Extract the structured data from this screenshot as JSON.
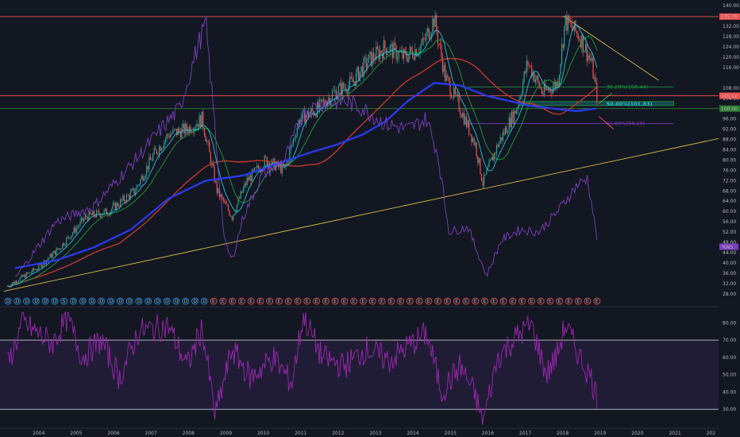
{
  "chart_data": [
    {
      "type": "candlestick",
      "panel": "price",
      "ylim": [
        27,
        141
      ],
      "y_ticks": [
        "140.00",
        "132.00",
        "128.00",
        "124.00",
        "120.00",
        "116.00",
        "108.00",
        "104.00",
        "100.00",
        "96.00",
        "92.00",
        "88.00",
        "84.00",
        "80.00",
        "76.00",
        "72.00",
        "68.00",
        "64.00",
        "60.00",
        "56.00",
        "52.00",
        "48.00",
        "44.00",
        "40.00",
        "36.00",
        "32.00",
        "28.00"
      ],
      "x_ticks": [
        "2004",
        "2005",
        "2006",
        "2007",
        "2008",
        "2009",
        "2010",
        "2011",
        "2012",
        "2013",
        "2014",
        "2015",
        "2016",
        "2017",
        "2018",
        "2019",
        "2020",
        "2021",
        "202"
      ],
      "x_range_years": [
        2003.0,
        2022.2
      ],
      "colors": {
        "up": "#26a69a",
        "down": "#ef5350",
        "ema_fast": "#26c6da",
        "ema_mid": "#1e9e3a",
        "sma_long": "#2a3bf5",
        "sma_200": "#c0392b",
        "overlay": "#7b3fbf",
        "trend": "#d4c145"
      },
      "price_points": [
        {
          "x": 2003.2,
          "y": 31
        },
        {
          "x": 2004.0,
          "y": 38
        },
        {
          "x": 2004.6,
          "y": 46
        },
        {
          "x": 2005.3,
          "y": 58
        },
        {
          "x": 2005.9,
          "y": 60
        },
        {
          "x": 2006.6,
          "y": 68
        },
        {
          "x": 2007.1,
          "y": 82
        },
        {
          "x": 2007.5,
          "y": 90
        },
        {
          "x": 2008.0,
          "y": 92
        },
        {
          "x": 2008.4,
          "y": 96
        },
        {
          "x": 2008.8,
          "y": 68
        },
        {
          "x": 2009.2,
          "y": 58
        },
        {
          "x": 2009.6,
          "y": 72
        },
        {
          "x": 2010.1,
          "y": 80
        },
        {
          "x": 2010.6,
          "y": 76
        },
        {
          "x": 2011.0,
          "y": 96
        },
        {
          "x": 2011.5,
          "y": 100
        },
        {
          "x": 2011.9,
          "y": 106
        },
        {
          "x": 2012.4,
          "y": 110
        },
        {
          "x": 2012.8,
          "y": 118
        },
        {
          "x": 2013.3,
          "y": 124
        },
        {
          "x": 2013.8,
          "y": 120
        },
        {
          "x": 2014.3,
          "y": 125
        },
        {
          "x": 2014.6,
          "y": 135
        },
        {
          "x": 2014.9,
          "y": 112
        },
        {
          "x": 2015.3,
          "y": 100
        },
        {
          "x": 2015.7,
          "y": 86
        },
        {
          "x": 2015.9,
          "y": 71
        },
        {
          "x": 2016.3,
          "y": 86
        },
        {
          "x": 2016.8,
          "y": 100
        },
        {
          "x": 2017.1,
          "y": 118
        },
        {
          "x": 2017.5,
          "y": 106
        },
        {
          "x": 2017.9,
          "y": 110
        },
        {
          "x": 2018.1,
          "y": 134
        },
        {
          "x": 2018.5,
          "y": 128
        },
        {
          "x": 2018.8,
          "y": 118
        },
        {
          "x": 2018.95,
          "y": 105
        }
      ],
      "overlay_points": [
        {
          "x": 2003.4,
          "y": 34
        },
        {
          "x": 2004.5,
          "y": 56
        },
        {
          "x": 2005.5,
          "y": 62
        },
        {
          "x": 2006.5,
          "y": 78
        },
        {
          "x": 2007.3,
          "y": 92
        },
        {
          "x": 2007.8,
          "y": 100
        },
        {
          "x": 2008.3,
          "y": 125
        },
        {
          "x": 2008.5,
          "y": 133
        },
        {
          "x": 2008.7,
          "y": 100
        },
        {
          "x": 2009.0,
          "y": 48
        },
        {
          "x": 2009.2,
          "y": 41
        },
        {
          "x": 2009.5,
          "y": 58
        },
        {
          "x": 2010.0,
          "y": 74
        },
        {
          "x": 2010.6,
          "y": 80
        },
        {
          "x": 2011.1,
          "y": 98
        },
        {
          "x": 2011.6,
          "y": 102
        },
        {
          "x": 2012.2,
          "y": 103
        },
        {
          "x": 2012.7,
          "y": 100
        },
        {
          "x": 2013.3,
          "y": 94
        },
        {
          "x": 2013.9,
          "y": 92
        },
        {
          "x": 2014.4,
          "y": 96
        },
        {
          "x": 2014.7,
          "y": 82
        },
        {
          "x": 2015.0,
          "y": 52
        },
        {
          "x": 2015.5,
          "y": 54
        },
        {
          "x": 2016.0,
          "y": 35
        },
        {
          "x": 2016.4,
          "y": 49
        },
        {
          "x": 2016.9,
          "y": 53
        },
        {
          "x": 2017.4,
          "y": 52
        },
        {
          "x": 2017.9,
          "y": 60
        },
        {
          "x": 2018.4,
          "y": 70
        },
        {
          "x": 2018.7,
          "y": 73
        },
        {
          "x": 2018.95,
          "y": 50
        }
      ],
      "sma_long_points": [
        {
          "x": 2003.4,
          "y": 38
        },
        {
          "x": 2004.5,
          "y": 41
        },
        {
          "x": 2005.5,
          "y": 46
        },
        {
          "x": 2006.5,
          "y": 53
        },
        {
          "x": 2007.5,
          "y": 65
        },
        {
          "x": 2008.5,
          "y": 72
        },
        {
          "x": 2009.5,
          "y": 74
        },
        {
          "x": 2010.5,
          "y": 79
        },
        {
          "x": 2011.3,
          "y": 83
        },
        {
          "x": 2012.0,
          "y": 86
        },
        {
          "x": 2012.7,
          "y": 90
        },
        {
          "x": 2013.3,
          "y": 95
        },
        {
          "x": 2013.9,
          "y": 103
        },
        {
          "x": 2014.6,
          "y": 110
        },
        {
          "x": 2015.3,
          "y": 109
        },
        {
          "x": 2016.0,
          "y": 105
        },
        {
          "x": 2016.6,
          "y": 103
        },
        {
          "x": 2017.2,
          "y": 101
        },
        {
          "x": 2017.8,
          "y": 100
        },
        {
          "x": 2018.4,
          "y": 99
        },
        {
          "x": 2018.9,
          "y": 100
        }
      ],
      "horizontal_levels": [
        {
          "price": 135.78,
          "label": "135.78",
          "color": "#ef5350"
        },
        {
          "price": 105.0,
          "label": "105.xx",
          "color": "#ef5350"
        },
        {
          "price": 100.0,
          "label": "100.00",
          "color": "#2e7d32"
        }
      ],
      "fib_levels": [
        {
          "price": 108.44,
          "label": "38.20%(108.44)",
          "color": "#1e9e3a"
        },
        {
          "price": 101.83,
          "label": "50.00%(101.83)",
          "color": "#26c6da"
        },
        {
          "price": 94.23,
          "label": "61.80%(94.23)",
          "color": "#7b3fbf"
        }
      ],
      "overlay_tag": "%N5",
      "event_markers": [
        "D",
        "D",
        "D",
        "D",
        "D",
        "D",
        "S",
        "D",
        "D",
        "D",
        "D",
        "D",
        "D",
        "D",
        "D",
        "D",
        "D",
        "D",
        "D",
        "D",
        "D",
        "D",
        "E",
        "E",
        "E",
        "E",
        "E",
        "E",
        "E",
        "E",
        "E",
        "E",
        "E",
        "E",
        "E",
        "E",
        "E",
        "E",
        "E",
        "E",
        "E",
        "E",
        "E",
        "E",
        "E",
        "E",
        "E",
        "E",
        "E",
        "E",
        "E",
        "E",
        "E",
        "E",
        "E",
        "E",
        "E",
        "E",
        "E",
        "E",
        "E",
        "E",
        "E",
        "E"
      ]
    },
    {
      "type": "line",
      "panel": "oscillator",
      "ylim": [
        20,
        87
      ],
      "y_ticks": [
        "80.00",
        "70.00",
        "60.00",
        "50.00",
        "40.00",
        "30.00"
      ],
      "bands": [
        30,
        70
      ],
      "color": "#9c27b0",
      "key_points": [
        {
          "x": 2003.2,
          "y": 55
        },
        {
          "x": 2003.6,
          "y": 80
        },
        {
          "x": 2004.4,
          "y": 68
        },
        {
          "x": 2004.8,
          "y": 83
        },
        {
          "x": 2005.2,
          "y": 60
        },
        {
          "x": 2005.7,
          "y": 70
        },
        {
          "x": 2006.2,
          "y": 48
        },
        {
          "x": 2006.7,
          "y": 75
        },
        {
          "x": 2007.5,
          "y": 78
        },
        {
          "x": 2008.0,
          "y": 55
        },
        {
          "x": 2008.4,
          "y": 77
        },
        {
          "x": 2008.75,
          "y": 26
        },
        {
          "x": 2009.2,
          "y": 65
        },
        {
          "x": 2009.7,
          "y": 48
        },
        {
          "x": 2010.3,
          "y": 60
        },
        {
          "x": 2010.8,
          "y": 45
        },
        {
          "x": 2011.1,
          "y": 84
        },
        {
          "x": 2011.6,
          "y": 60
        },
        {
          "x": 2012.2,
          "y": 55
        },
        {
          "x": 2012.8,
          "y": 65
        },
        {
          "x": 2013.4,
          "y": 58
        },
        {
          "x": 2014.0,
          "y": 68
        },
        {
          "x": 2014.4,
          "y": 74
        },
        {
          "x": 2014.8,
          "y": 40
        },
        {
          "x": 2015.3,
          "y": 55
        },
        {
          "x": 2015.7,
          "y": 38
        },
        {
          "x": 2015.9,
          "y": 22
        },
        {
          "x": 2016.3,
          "y": 60
        },
        {
          "x": 2016.8,
          "y": 72
        },
        {
          "x": 2017.2,
          "y": 79
        },
        {
          "x": 2017.6,
          "y": 50
        },
        {
          "x": 2017.9,
          "y": 62
        },
        {
          "x": 2018.1,
          "y": 79
        },
        {
          "x": 2018.5,
          "y": 60
        },
        {
          "x": 2018.8,
          "y": 48
        },
        {
          "x": 2018.95,
          "y": 37
        }
      ]
    }
  ]
}
